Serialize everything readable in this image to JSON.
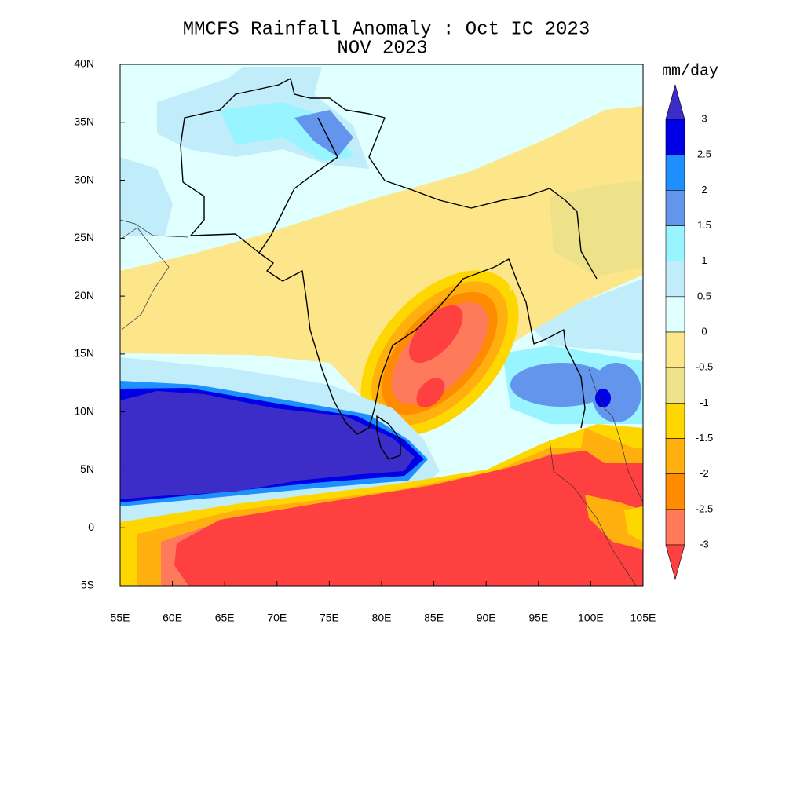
{
  "chart_data": {
    "type": "map",
    "title": "MMCFS Rainfall Anomaly : Oct IC 2023",
    "subtitle": "NOV 2023",
    "xlim": [
      55,
      105
    ],
    "ylim": [
      -5,
      40
    ],
    "xticks": [
      {
        "value": 55,
        "label": "55E"
      },
      {
        "value": 60,
        "label": "60E"
      },
      {
        "value": 65,
        "label": "65E"
      },
      {
        "value": 70,
        "label": "70E"
      },
      {
        "value": 75,
        "label": "75E"
      },
      {
        "value": 80,
        "label": "80E"
      },
      {
        "value": 85,
        "label": "85E"
      },
      {
        "value": 90,
        "label": "90E"
      },
      {
        "value": 95,
        "label": "95E"
      },
      {
        "value": 100,
        "label": "100E"
      },
      {
        "value": 105,
        "label": "105E"
      }
    ],
    "yticks": [
      {
        "value": 40,
        "label": "40N"
      },
      {
        "value": 35,
        "label": "35N"
      },
      {
        "value": 30,
        "label": "30N"
      },
      {
        "value": 25,
        "label": "25N"
      },
      {
        "value": 20,
        "label": "20N"
      },
      {
        "value": 15,
        "label": "15N"
      },
      {
        "value": 10,
        "label": "10N"
      },
      {
        "value": 5,
        "label": "5N"
      },
      0,
      {
        "value": -5,
        "label": "5S"
      }
    ],
    "colorbar": {
      "label": "mm/day",
      "levels": [
        3,
        2.5,
        2,
        1.5,
        1,
        0.5,
        0,
        -0.5,
        -1,
        -1.5,
        -2,
        -2.5,
        -3
      ],
      "colors": [
        "#3c2dc8",
        "#0000e6",
        "#1e8fff",
        "#6495ed",
        "#98f5ff",
        "#c1ecfa",
        "#e0ffff",
        "#fde68a",
        "#ede28a",
        "#ffd700",
        "#ffb00f",
        "#ff8c00",
        "#ff7a5a",
        "#ff4040"
      ]
    }
  }
}
